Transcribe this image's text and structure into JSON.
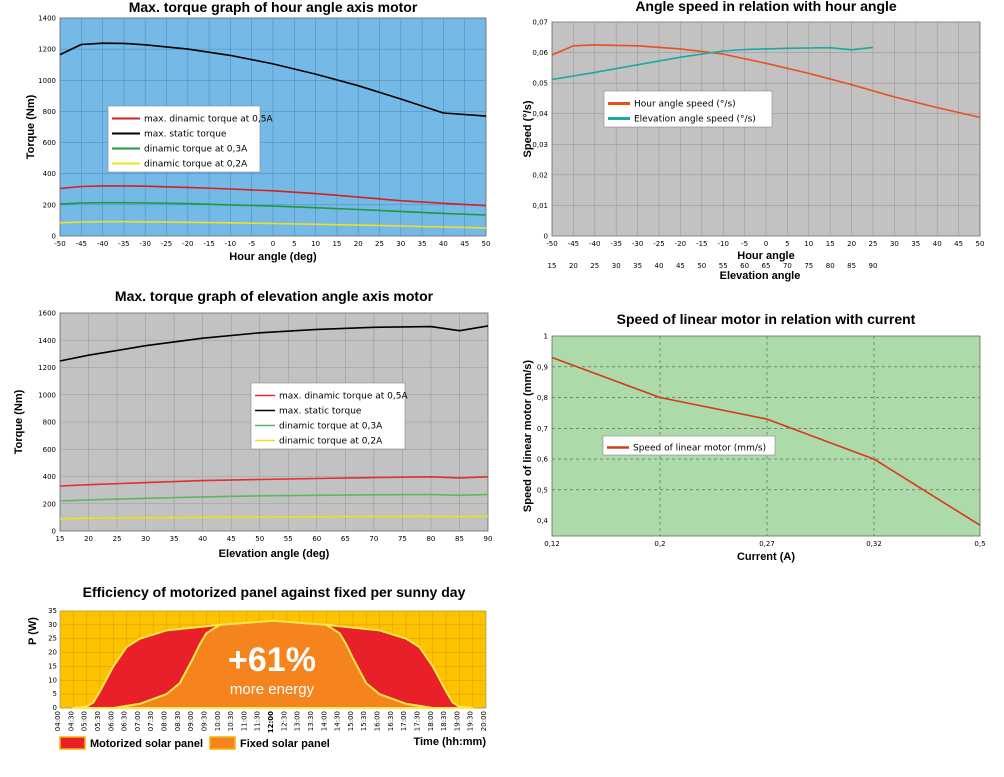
{
  "chart_data": [
    {
      "type": "line",
      "title": "Max. torque graph of hour angle axis motor",
      "xlabel": "Hour angle (deg)",
      "ylabel": "Torque (Nm)",
      "xlim": [
        -50,
        50
      ],
      "ylim": [
        0,
        1400
      ],
      "x_ticks": [
        -50,
        -45,
        -40,
        -35,
        -30,
        -25,
        -20,
        -15,
        -10,
        -5,
        0,
        5,
        10,
        15,
        20,
        25,
        30,
        35,
        40,
        45,
        50
      ],
      "y_ticks": [
        0,
        200,
        400,
        600,
        800,
        1000,
        1200,
        1400
      ],
      "background": "#75b9e6",
      "grid": true,
      "legend_position": "center-left",
      "series": [
        {
          "name": "max. dinamic torque at 0,5A",
          "color": "#d42020",
          "x": [
            -50,
            -45,
            -40,
            -35,
            -30,
            -20,
            -10,
            0,
            10,
            20,
            30,
            40,
            50
          ],
          "y": [
            305,
            318,
            322,
            322,
            320,
            312,
            302,
            290,
            272,
            250,
            227,
            210,
            195
          ]
        },
        {
          "name": "max. static torque",
          "color": "#000000",
          "x": [
            -50,
            -45,
            -40,
            -35,
            -30,
            -20,
            -10,
            0,
            10,
            20,
            30,
            40,
            50
          ],
          "y": [
            1165,
            1230,
            1238,
            1237,
            1228,
            1200,
            1160,
            1105,
            1040,
            965,
            880,
            790,
            770
          ]
        },
        {
          "name": "dinamic torque at 0,3A",
          "color": "#1f9a3a",
          "x": [
            -50,
            -45,
            -40,
            -35,
            -30,
            -20,
            -10,
            0,
            10,
            20,
            30,
            40,
            50
          ],
          "y": [
            205,
            212,
            214,
            214,
            212,
            208,
            200,
            192,
            182,
            170,
            158,
            145,
            135
          ]
        },
        {
          "name": "dinamic torque at 0,2A",
          "color": "#f0e020",
          "x": [
            -50,
            -45,
            -40,
            -35,
            -30,
            -20,
            -10,
            0,
            10,
            20,
            30,
            40,
            50
          ],
          "y": [
            85,
            90,
            92,
            92,
            91,
            88,
            85,
            80,
            75,
            70,
            64,
            58,
            52
          ]
        }
      ]
    },
    {
      "type": "line",
      "title": "Angle speed in relation with hour angle",
      "xlabel": "Hour angle",
      "xlabel2": "Elevation angle",
      "ylabel": "Speed (°/s)",
      "xlim": [
        -50,
        50
      ],
      "ylim": [
        0,
        0.07
      ],
      "x_ticks": [
        -50,
        -45,
        -40,
        -35,
        -30,
        -25,
        -20,
        -15,
        -10,
        -5,
        0,
        5,
        10,
        15,
        20,
        25,
        30,
        35,
        40,
        45,
        50
      ],
      "x_ticks2": [
        15,
        20,
        25,
        30,
        35,
        40,
        45,
        50,
        55,
        60,
        65,
        70,
        75,
        80,
        85,
        90
      ],
      "y_ticks": [
        "0",
        "0,01",
        "0,02",
        "0,03",
        "0,04",
        "0,05",
        "0,06",
        "0,07"
      ],
      "background": "#c2c2c2",
      "grid": true,
      "legend_position": "upper-center",
      "series": [
        {
          "name": "Hour angle speed (°/s)",
          "color": "#e8501e",
          "x": [
            -50,
            -45,
            -40,
            -30,
            -20,
            -10,
            0,
            10,
            20,
            30,
            40,
            50
          ],
          "y": [
            0.0592,
            0.0622,
            0.0625,
            0.0622,
            0.0612,
            0.0595,
            0.0565,
            0.0532,
            0.0495,
            0.0455,
            0.042,
            0.0388
          ]
        },
        {
          "name": "Elevation angle speed (°/s)",
          "color": "#1aa8a0",
          "x": [
            -50,
            -40,
            -30,
            -20,
            -10,
            -5,
            0,
            5,
            10,
            15,
            20,
            25
          ],
          "y": [
            0.0512,
            0.0535,
            0.056,
            0.0585,
            0.0605,
            0.061,
            0.0612,
            0.0614,
            0.0615,
            0.0616,
            0.0609,
            0.0617
          ]
        }
      ]
    },
    {
      "type": "line",
      "title": "Max. torque graph of elevation angle axis motor",
      "xlabel": "Elevation angle (deg)",
      "ylabel": "Torque (Nm)",
      "xlim": [
        15,
        90
      ],
      "ylim": [
        0,
        1600
      ],
      "x_ticks": [
        15,
        20,
        25,
        30,
        35,
        40,
        45,
        50,
        55,
        60,
        65,
        70,
        75,
        80,
        85,
        90
      ],
      "y_ticks": [
        0,
        200,
        400,
        600,
        800,
        1000,
        1200,
        1400,
        1600
      ],
      "background": "#c2c2c2",
      "grid": true,
      "legend_position": "center-right",
      "series": [
        {
          "name": "max. dinamic torque at 0,5A",
          "color": "#e03030",
          "x": [
            15,
            20,
            30,
            40,
            50,
            60,
            70,
            80,
            85,
            90
          ],
          "y": [
            330,
            340,
            355,
            370,
            378,
            385,
            392,
            398,
            390,
            398
          ]
        },
        {
          "name": "max. static torque",
          "color": "#000000",
          "x": [
            15,
            20,
            30,
            40,
            50,
            60,
            70,
            75,
            80,
            85,
            90
          ],
          "y": [
            1248,
            1290,
            1360,
            1415,
            1455,
            1480,
            1495,
            1498,
            1500,
            1470,
            1505
          ]
        },
        {
          "name": "dinamic torque at 0,3A",
          "color": "#5cb85c",
          "x": [
            15,
            20,
            30,
            40,
            50,
            60,
            70,
            80,
            85,
            90
          ],
          "y": [
            220,
            228,
            240,
            250,
            258,
            262,
            266,
            268,
            262,
            268
          ]
        },
        {
          "name": "dinamic torque at 0,2A",
          "color": "#e8e020",
          "x": [
            15,
            20,
            30,
            40,
            50,
            60,
            70,
            80,
            85,
            90
          ],
          "y": [
            90,
            93,
            97,
            100,
            103,
            105,
            107,
            108,
            106,
            108
          ]
        }
      ]
    },
    {
      "type": "line",
      "title": "Speed of linear motor in relation with current",
      "xlabel": "Current (A)",
      "ylabel": "Speed of linear motor (mm/s)",
      "xlim": [
        0.12,
        0.5
      ],
      "ylim": [
        0.35,
        1
      ],
      "x_ticks": [
        "0,12",
        "0,2",
        "0,27",
        "0,32",
        "0,5"
      ],
      "y_ticks": [
        "0,4",
        "0,5",
        "0,6",
        "0,7",
        "0,8",
        "0,9",
        "1"
      ],
      "background": "#acdaa9",
      "grid": true,
      "legend_position": "center-left",
      "series": [
        {
          "name": "Speed of linear motor (mm/s)",
          "color": "#d43a1a",
          "x_index": [
            0,
            1,
            2,
            3,
            4
          ],
          "y": [
            0.93,
            0.8,
            0.73,
            0.6,
            0.385
          ]
        }
      ]
    },
    {
      "type": "area",
      "title": "Efficiency of motorized panel against fixed per sunny day",
      "xlabel": "Time (hh:mm)",
      "ylabel": "P (W)",
      "ylim": [
        0,
        35
      ],
      "y_ticks": [
        0,
        5,
        10,
        15,
        20,
        25,
        30,
        35
      ],
      "x_ticks": [
        "04:00",
        "04:30",
        "05:00",
        "05:30",
        "06:00",
        "06:30",
        "07:00",
        "07:30",
        "08:00",
        "08:30",
        "09:00",
        "09:30",
        "10:00",
        "10:30",
        "11:00",
        "11:30",
        "12:00",
        "12:30",
        "13:00",
        "13:30",
        "14:00",
        "14:30",
        "15:00",
        "15:30",
        "16:00",
        "16:30",
        "17:00",
        "17:30",
        "18:00",
        "18:30",
        "19:00",
        "19:30",
        "20:00"
      ],
      "background": "#fdc200",
      "grid": true,
      "annotation": {
        "main": "+61%",
        "sub": "more energy"
      },
      "legend_position": "bottom",
      "series": [
        {
          "name": "Motorized solar panel",
          "color": "#e8202a",
          "x_index": [
            1,
            2,
            2.5,
            3,
            4,
            5,
            6,
            8,
            12,
            16,
            20,
            24,
            26,
            27,
            28,
            29,
            29.5,
            30,
            31
          ],
          "y": [
            0,
            0.5,
            2,
            6,
            15,
            22,
            25,
            28,
            30,
            31,
            30,
            28,
            25,
            22,
            15,
            6,
            2,
            0.5,
            0
          ]
        },
        {
          "name": "Fixed solar panel",
          "color": "#f5841f",
          "x_index": [
            4,
            6,
            8,
            9,
            10,
            10.5,
            11,
            12,
            16,
            20,
            21,
            21.5,
            22,
            23,
            24,
            26,
            28
          ],
          "y": [
            0,
            1.5,
            5,
            9,
            18,
            23,
            27,
            30,
            31.5,
            30,
            27,
            23,
            18,
            9,
            5,
            1.5,
            0
          ]
        }
      ]
    }
  ]
}
